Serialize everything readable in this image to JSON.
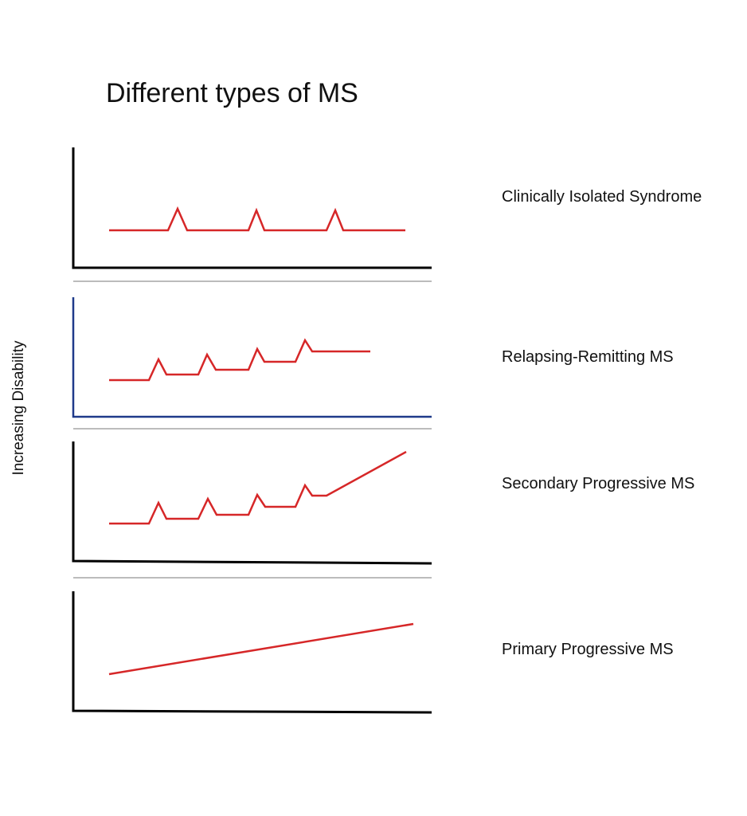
{
  "title": "Different types of MS",
  "y_axis_label": "Increasing Disability",
  "colors": {
    "trace": "#d62728",
    "axis": "#000000",
    "axis_highlight": "#1f3a8a",
    "separator": "#a6a6a6"
  },
  "panels": [
    {
      "label": "Clinically Isolated Syndrome",
      "pattern": "isolated relapses, full recovery"
    },
    {
      "label": "Relapsing-Remitting MS",
      "pattern": "relapses with incomplete recovery, stepwise rise"
    },
    {
      "label": "Secondary Progressive MS",
      "pattern": "relapses followed by steady progression"
    },
    {
      "label": "Primary Progressive MS",
      "pattern": "steady progression from onset"
    }
  ]
}
